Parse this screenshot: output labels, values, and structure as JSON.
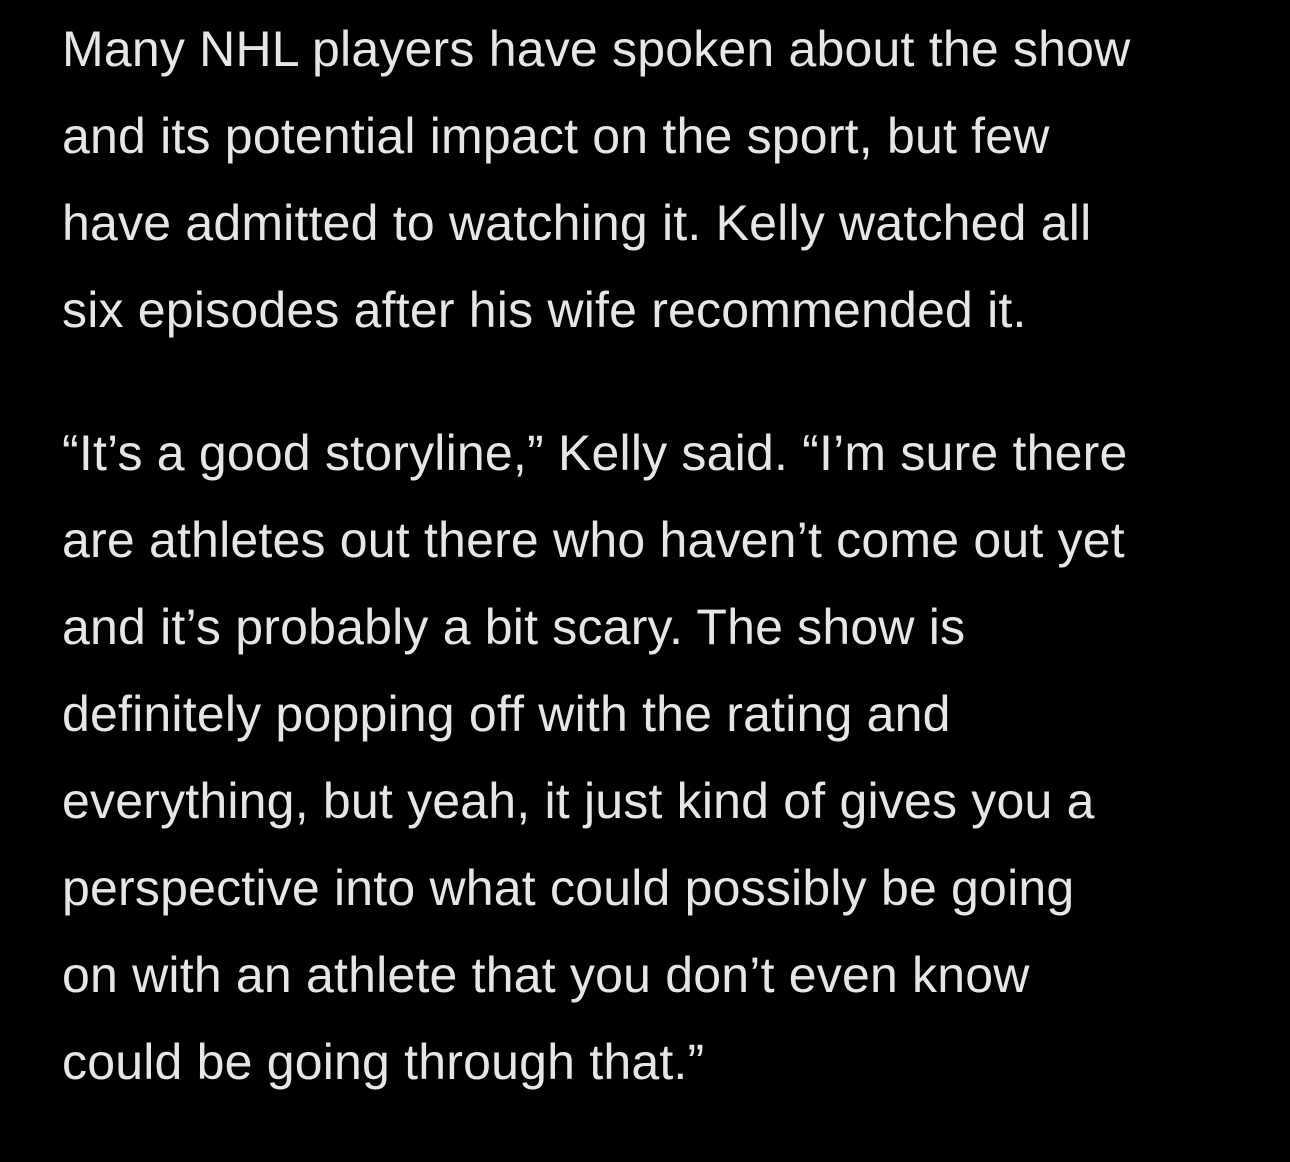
{
  "article": {
    "paragraphs": [
      {
        "lines": [
          "Many NHL players have spoken about the show",
          "and its potential impact on the sport, but few",
          "have admitted to watching it. Kelly watched all",
          "six episodes after his wife recommended it."
        ]
      },
      {
        "lines": [
          "“It’s a good storyline,” Kelly said. “I’m sure there",
          "are athletes out there who haven’t come out yet",
          "and it’s probably a bit scary. The show is",
          "definitely popping off with the rating and",
          "everything, but yeah, it just kind of gives you a",
          "perspective into what could possibly be going",
          "on with an athlete that you don’t even know",
          "could be going through that.”"
        ]
      }
    ]
  }
}
